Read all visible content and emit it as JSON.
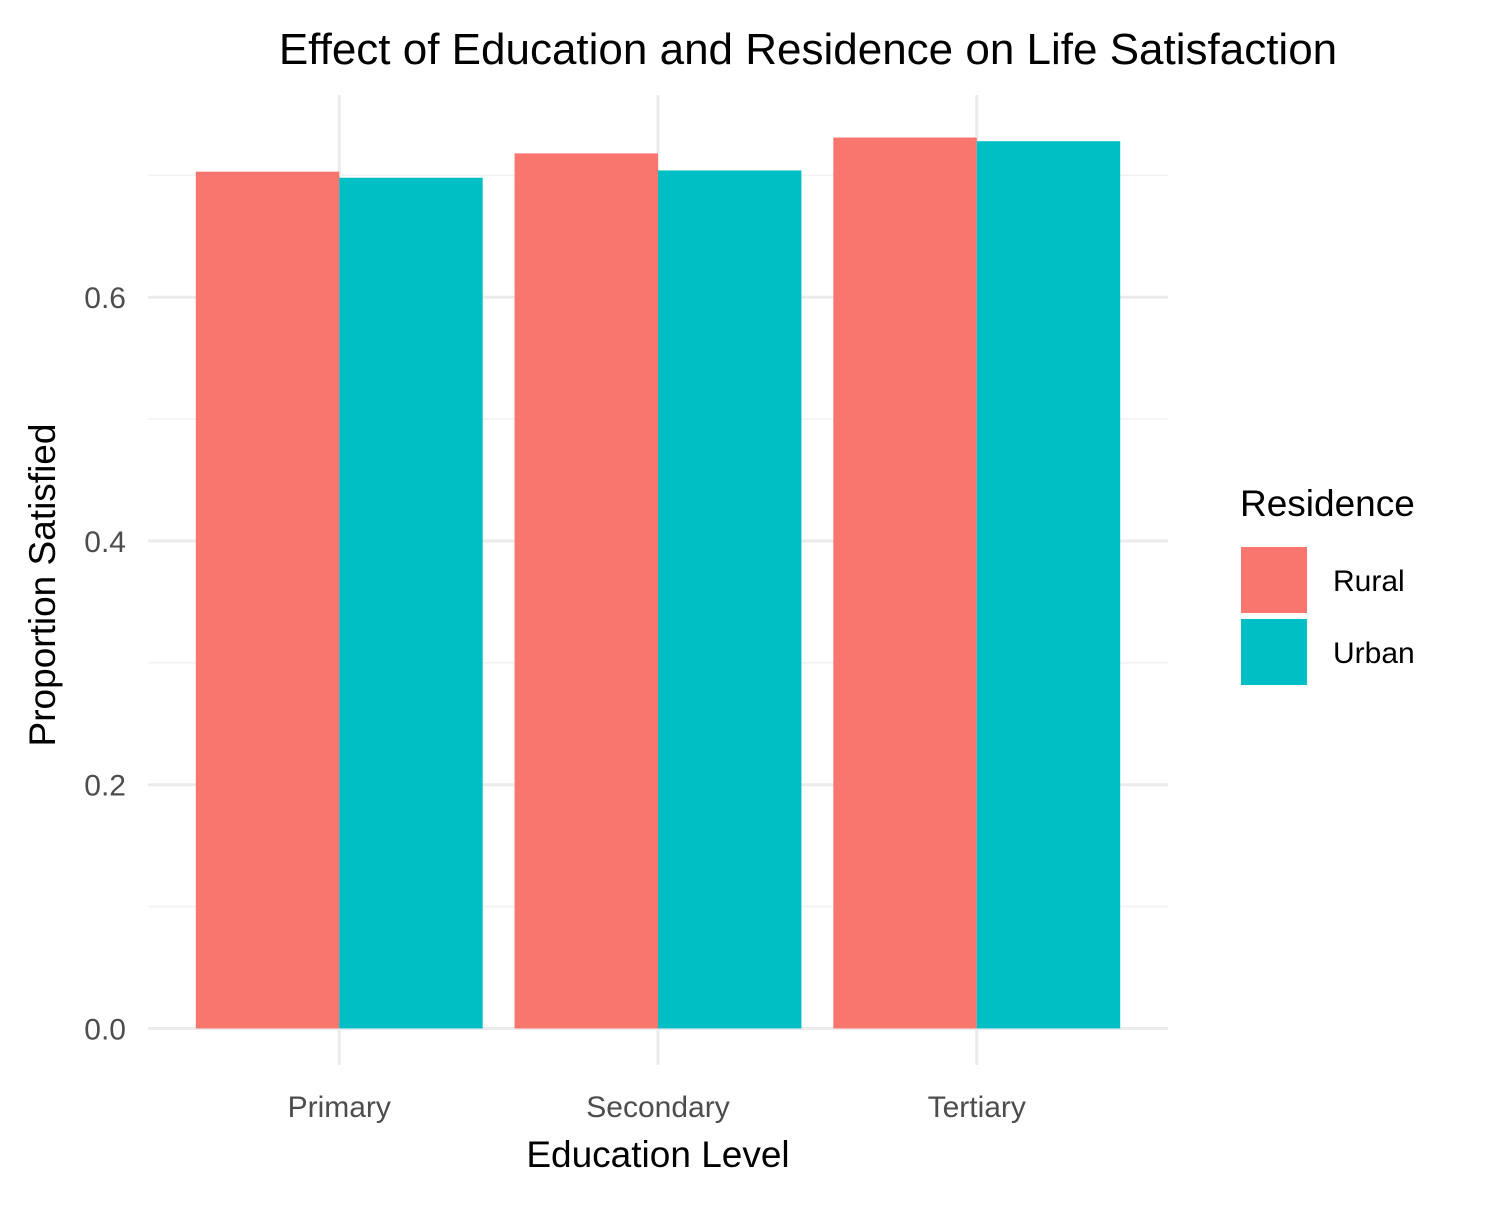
{
  "chart_data": {
    "type": "bar",
    "title": "Effect of Education and Residence on Life Satisfaction",
    "xlabel": "Education Level",
    "ylabel": "Proportion Satisfied",
    "categories": [
      "Primary",
      "Secondary",
      "Tertiary"
    ],
    "series": [
      {
        "name": "Rural",
        "color": "#F8766D",
        "values": [
          0.703,
          0.718,
          0.731
        ]
      },
      {
        "name": "Urban",
        "color": "#00BFC4",
        "values": [
          0.698,
          0.704,
          0.728
        ]
      }
    ],
    "yticks": [
      "0.0",
      "0.2",
      "0.4",
      "0.6"
    ],
    "ylim": [
      -0.03,
      0.77
    ],
    "grid": true,
    "legend": {
      "title": "Residence",
      "position": "right"
    }
  }
}
